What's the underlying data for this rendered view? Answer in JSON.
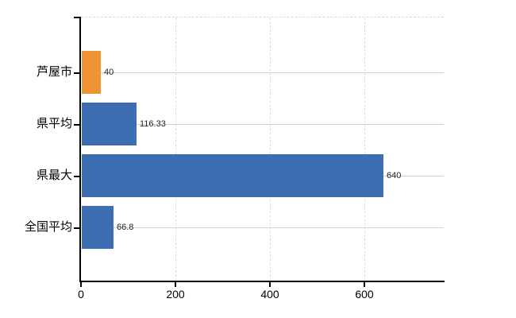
{
  "chart_data": {
    "type": "bar",
    "orientation": "horizontal",
    "title": "",
    "xlabel": "",
    "ylabel": "",
    "categories": [
      "芦屋市",
      "県平均",
      "県最大",
      "全国平均"
    ],
    "values": [
      40,
      116.33,
      640,
      66.8
    ],
    "value_labels": [
      "40",
      "116.33",
      "640",
      "66.8"
    ],
    "bar_colors": [
      "#ee9435",
      "#3d6eb2",
      "#3d6eb2",
      "#3d6eb2"
    ],
    "x_ticks": [
      0,
      200,
      400,
      600
    ],
    "x_tick_labels": [
      "0",
      "200",
      "400",
      "600"
    ],
    "xlim": [
      0,
      768
    ],
    "legend": null,
    "grid": {
      "vertical_style": "dashed",
      "vertical_color": "#dcdcdc",
      "horizontal_style": "solid",
      "horizontal_color": "#ccd6cc",
      "top_border_style": "dashed",
      "top_border_color": "#d9d9d9"
    },
    "colors": {
      "axis": "#000000",
      "category_label": "#000000",
      "tick_label": "#000000",
      "value_label": "#222222",
      "background": "#ffffff",
      "accent_orange": "#ee9435",
      "accent_blue": "#3d6eb2"
    }
  }
}
